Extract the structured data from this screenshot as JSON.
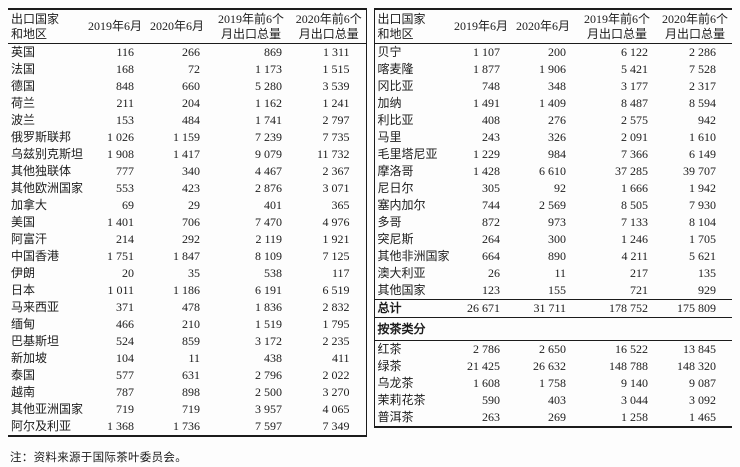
{
  "columns": {
    "country": "出口国家\n和地区",
    "jun_2019": "2019年6月",
    "jun_2020": "2020年6月",
    "h1_2019": "2019年前6个\n月出口总量",
    "h1_2020": "2020年前6个\n月出口总量"
  },
  "left_table": {
    "rows": [
      {
        "name": "英国",
        "values": [
          "116",
          "266",
          "869",
          "1 311"
        ]
      },
      {
        "name": "法国",
        "values": [
          "168",
          "72",
          "1 173",
          "1 515"
        ]
      },
      {
        "name": "德国",
        "values": [
          "848",
          "660",
          "5 280",
          "3 539"
        ]
      },
      {
        "name": "荷兰",
        "values": [
          "211",
          "204",
          "1 162",
          "1 241"
        ]
      },
      {
        "name": "波兰",
        "values": [
          "153",
          "484",
          "1 741",
          "2 797"
        ]
      },
      {
        "name": "俄罗斯联邦",
        "values": [
          "1 026",
          "1 159",
          "7 239",
          "7 735"
        ]
      },
      {
        "name": "乌兹别克斯坦",
        "values": [
          "1 908",
          "1 417",
          "9 079",
          "11 732"
        ]
      },
      {
        "name": "其他独联体",
        "values": [
          "777",
          "340",
          "4 467",
          "2 367"
        ]
      },
      {
        "name": "其他欧洲国家",
        "values": [
          "553",
          "423",
          "2 876",
          "3 071"
        ]
      },
      {
        "name": "加拿大",
        "values": [
          "69",
          "29",
          "401",
          "365"
        ]
      },
      {
        "name": "美国",
        "values": [
          "1 401",
          "706",
          "7 470",
          "4 976"
        ]
      },
      {
        "name": "阿富汗",
        "values": [
          "214",
          "292",
          "2 119",
          "1 921"
        ]
      },
      {
        "name": "中国香港",
        "values": [
          "1 751",
          "1 847",
          "8 109",
          "7 125"
        ]
      },
      {
        "name": "伊朗",
        "values": [
          "20",
          "35",
          "538",
          "117"
        ]
      },
      {
        "name": "日本",
        "values": [
          "1 011",
          "1 186",
          "6 191",
          "6 519"
        ]
      },
      {
        "name": "马来西亚",
        "values": [
          "371",
          "478",
          "1 836",
          "2 832"
        ]
      },
      {
        "name": "缅甸",
        "values": [
          "466",
          "210",
          "1 519",
          "1 795"
        ]
      },
      {
        "name": "巴基斯坦",
        "values": [
          "524",
          "859",
          "3 172",
          "2 235"
        ]
      },
      {
        "name": "新加坡",
        "values": [
          "104",
          "11",
          "438",
          "411"
        ]
      },
      {
        "name": "泰国",
        "values": [
          "577",
          "631",
          "2 796",
          "2 022"
        ]
      },
      {
        "name": "越南",
        "values": [
          "787",
          "898",
          "2 500",
          "3 270"
        ]
      },
      {
        "name": "其他亚洲国家",
        "values": [
          "719",
          "719",
          "3 957",
          "4 065"
        ]
      },
      {
        "name": "阿尔及利亚",
        "values": [
          "1 368",
          "1 736",
          "7 597",
          "7 349"
        ]
      }
    ]
  },
  "right_table": {
    "rows": [
      {
        "name": "贝宁",
        "values": [
          "1 107",
          "200",
          "6 122",
          "2 286"
        ]
      },
      {
        "name": "喀麦隆",
        "values": [
          "1 877",
          "1 906",
          "5 421",
          "7 528"
        ]
      },
      {
        "name": "冈比亚",
        "values": [
          "748",
          "348",
          "3 177",
          "2 317"
        ]
      },
      {
        "name": "加纳",
        "values": [
          "1 491",
          "1 409",
          "8 487",
          "8 594"
        ]
      },
      {
        "name": "利比亚",
        "values": [
          "408",
          "276",
          "2 575",
          "942"
        ]
      },
      {
        "name": "马里",
        "values": [
          "243",
          "326",
          "2 091",
          "1 610"
        ]
      },
      {
        "name": "毛里塔尼亚",
        "values": [
          "1 229",
          "984",
          "7 366",
          "6 149"
        ]
      },
      {
        "name": "摩洛哥",
        "values": [
          "1 428",
          "6 610",
          "37 285",
          "39 707"
        ]
      },
      {
        "name": "尼日尔",
        "values": [
          "305",
          "92",
          "1 666",
          "1 942"
        ]
      },
      {
        "name": "塞内加尔",
        "values": [
          "744",
          "2 569",
          "8 505",
          "7 930"
        ]
      },
      {
        "name": "多哥",
        "values": [
          "872",
          "973",
          "7 133",
          "8 104"
        ]
      },
      {
        "name": "突尼斯",
        "values": [
          "264",
          "300",
          "1 246",
          "1 705"
        ]
      },
      {
        "name": "其他非洲国家",
        "values": [
          "664",
          "890",
          "4 211",
          "5 621"
        ]
      },
      {
        "name": "澳大利亚",
        "values": [
          "26",
          "11",
          "217",
          "135"
        ]
      },
      {
        "name": "其他国家",
        "values": [
          "123",
          "155",
          "721",
          "929"
        ]
      }
    ],
    "total": {
      "label": "总计",
      "values": [
        "26 671",
        "31 711",
        "178 752",
        "175 809"
      ]
    },
    "section_label": "按茶类分",
    "tea_rows": [
      {
        "name": "红茶",
        "values": [
          "2 786",
          "2 650",
          "16 522",
          "13 845"
        ]
      },
      {
        "name": "绿茶",
        "values": [
          "21 425",
          "26 632",
          "148 788",
          "148 320"
        ]
      },
      {
        "name": "乌龙茶",
        "values": [
          "1 608",
          "1 758",
          "9 140",
          "9 087"
        ]
      },
      {
        "name": "茉莉花茶",
        "values": [
          "590",
          "403",
          "3 044",
          "3 092"
        ]
      },
      {
        "name": "普洱茶",
        "values": [
          "263",
          "269",
          "1 258",
          "1 465"
        ]
      }
    ]
  },
  "note": "注：资料来源于国际茶叶委员会。"
}
